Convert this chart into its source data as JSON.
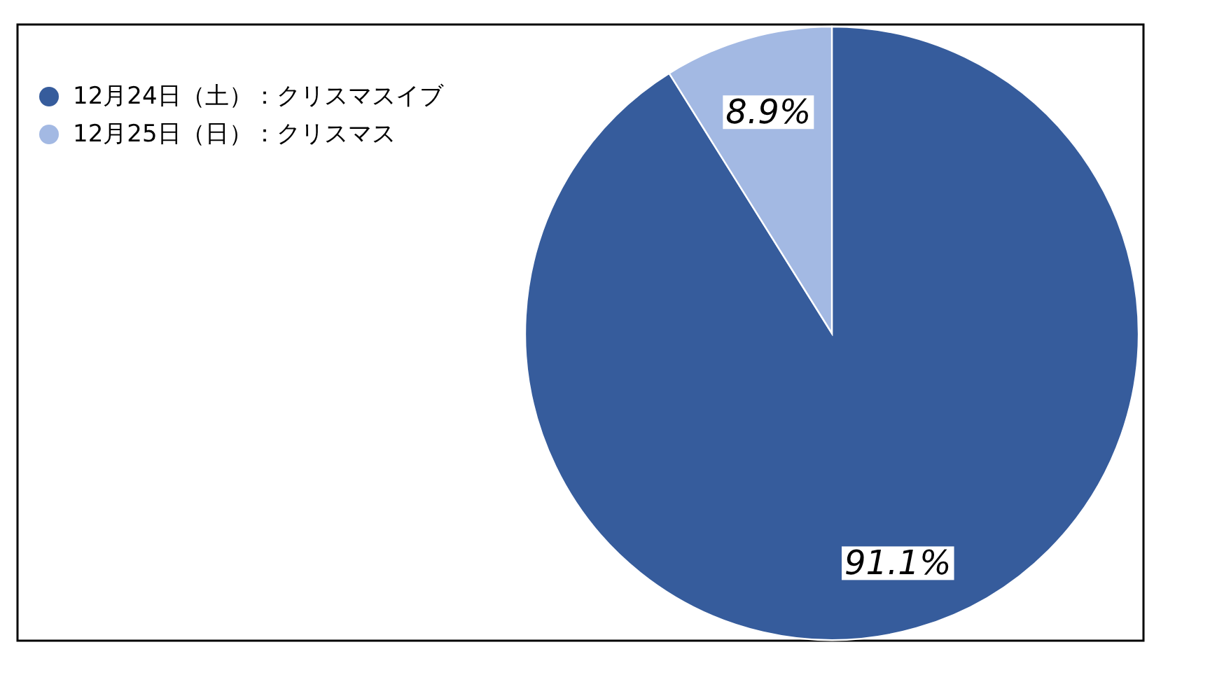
{
  "chart_data": {
    "type": "pie",
    "categories": [
      "12月24日（土）：クリスマスイブ",
      "12月25日（日）：クリスマス"
    ],
    "values": [
      91.1,
      8.9
    ],
    "colors": [
      "#365c9c",
      "#a3b9e3"
    ],
    "value_labels": [
      "91.1%",
      "8.9%"
    ],
    "legend": "top left"
  }
}
